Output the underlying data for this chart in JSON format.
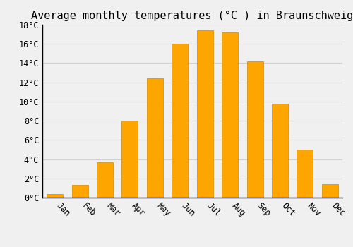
{
  "title": "Average monthly temperatures (°C ) in Braunschweig",
  "months": [
    "Jan",
    "Feb",
    "Mar",
    "Apr",
    "May",
    "Jun",
    "Jul",
    "Aug",
    "Sep",
    "Oct",
    "Nov",
    "Dec"
  ],
  "values": [
    0.4,
    1.3,
    3.7,
    8.0,
    12.4,
    16.0,
    17.4,
    17.2,
    14.2,
    9.8,
    5.0,
    1.4
  ],
  "bar_color": "#FFA500",
  "bar_edge_color": "#CC8800",
  "ylim": [
    0,
    18
  ],
  "yticks": [
    0,
    2,
    4,
    6,
    8,
    10,
    12,
    14,
    16,
    18
  ],
  "ytick_labels": [
    "0°C",
    "2°C",
    "4°C",
    "6°C",
    "8°C",
    "10°C",
    "12°C",
    "14°C",
    "16°C",
    "18°C"
  ],
  "background_color": "#f0f0f0",
  "grid_color": "#d0d0d0",
  "title_fontsize": 11,
  "tick_fontsize": 8.5,
  "font_family": "monospace"
}
